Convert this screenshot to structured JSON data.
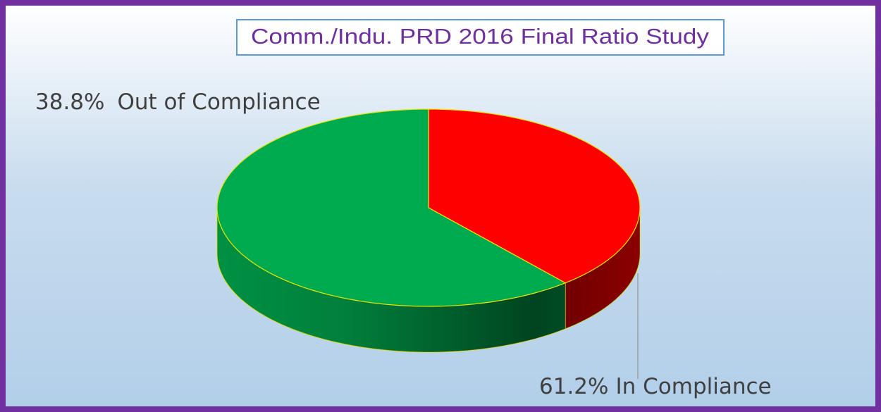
{
  "chart_data": {
    "type": "pie",
    "title": "Comm./Indu. PRD 2016 Final Ratio Study",
    "categories": [
      "Out of Compliance",
      "In Compliance"
    ],
    "values": [
      38.8,
      61.2
    ],
    "value_labels": [
      "38.8%",
      "61.2%"
    ],
    "colors": [
      "#ff0000",
      "#00aa4f"
    ]
  }
}
